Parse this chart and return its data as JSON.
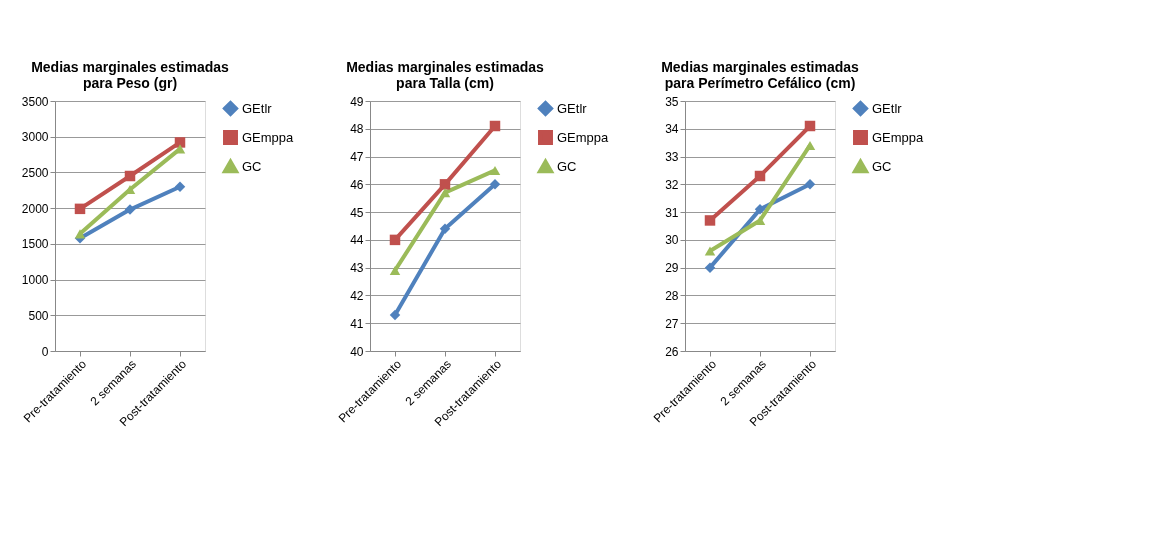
{
  "chart_data": [
    {
      "type": "line",
      "title": "Medias marginales estimadas\npara Peso (gr)",
      "categories": [
        "Pre-tratamiento",
        "2 semanas",
        "Post-tratamiento"
      ],
      "ylim": [
        0,
        3500
      ],
      "yticks": [
        0,
        500,
        1000,
        1500,
        2000,
        2500,
        3000,
        3500
      ],
      "grid": "y",
      "legend": "right",
      "series": [
        {
          "name": "GEtlr",
          "color": "#4f81bd",
          "marker": "diamond",
          "values": [
            1580,
            1980,
            2300
          ]
        },
        {
          "name": "GEmppa",
          "color": "#c0504d",
          "marker": "square",
          "values": [
            1990,
            2450,
            2920
          ]
        },
        {
          "name": "GC",
          "color": "#9bbb59",
          "marker": "triangle",
          "values": [
            1640,
            2260,
            2830
          ]
        }
      ]
    },
    {
      "type": "line",
      "title": "Medias marginales estimadas\npara Talla (cm)",
      "categories": [
        "Pre-tratamiento",
        "2 semanas",
        "Post-tratamiento"
      ],
      "ylim": [
        40,
        49
      ],
      "yticks": [
        40,
        41,
        42,
        43,
        44,
        45,
        46,
        47,
        48,
        49
      ],
      "grid": "y",
      "legend": "right",
      "series": [
        {
          "name": "GEtlr",
          "color": "#4f81bd",
          "marker": "diamond",
          "values": [
            41.3,
            44.4,
            46.0
          ]
        },
        {
          "name": "GEmppa",
          "color": "#c0504d",
          "marker": "square",
          "values": [
            44.0,
            46.0,
            48.1
          ]
        },
        {
          "name": "GC",
          "color": "#9bbb59",
          "marker": "triangle",
          "values": [
            42.9,
            45.7,
            46.5
          ]
        }
      ]
    },
    {
      "type": "line",
      "title": "Medias marginales estimadas\npara Perímetro Cefálico (cm)",
      "categories": [
        "Pre-tratamiento",
        "2 semanas",
        "Post-tratamiento"
      ],
      "ylim": [
        26,
        35
      ],
      "yticks": [
        26,
        27,
        28,
        29,
        30,
        31,
        32,
        33,
        34,
        35
      ],
      "grid": "y",
      "legend": "right",
      "series": [
        {
          "name": "GEtlr",
          "color": "#4f81bd",
          "marker": "diamond",
          "values": [
            29.0,
            31.1,
            32.0
          ]
        },
        {
          "name": "GEmppa",
          "color": "#c0504d",
          "marker": "square",
          "values": [
            30.7,
            32.3,
            34.1
          ]
        },
        {
          "name": "GC",
          "color": "#9bbb59",
          "marker": "triangle",
          "values": [
            29.6,
            30.7,
            33.4
          ]
        }
      ]
    }
  ]
}
